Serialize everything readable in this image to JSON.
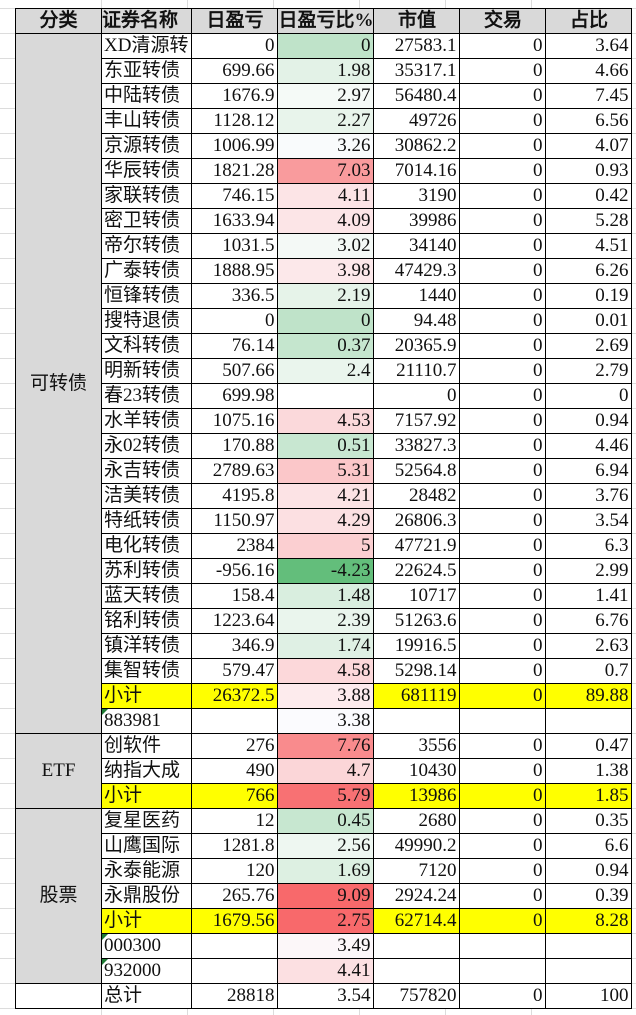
{
  "headers": [
    "分类",
    "证券名称",
    "日盈亏",
    "日盈亏比%",
    "市值",
    "交易",
    "占比"
  ],
  "colors": {
    "header_bg": "#d9d9d9",
    "category_bg": "#d9d9d9",
    "subtotal_bg": "#ffff00"
  },
  "groups": [
    {
      "category": "可转债",
      "rows": [
        {
          "name": "XD清源转",
          "pnl": "0",
          "pct": "0",
          "pct_bg": "#bfe3c9",
          "mv": "27583.1",
          "trade": "0",
          "share": "3.64"
        },
        {
          "name": "东亚转债",
          "pnl": "699.66",
          "pct": "1.98",
          "pct_bg": "#e3f2e7",
          "mv": "35317.1",
          "trade": "0",
          "share": "4.66"
        },
        {
          "name": "中陆转债",
          "pnl": "1676.9",
          "pct": "2.97",
          "pct_bg": "#f5faf7",
          "mv": "56480.4",
          "trade": "0",
          "share": "7.45"
        },
        {
          "name": "丰山转债",
          "pnl": "1128.12",
          "pct": "2.27",
          "pct_bg": "#e8f4eb",
          "mv": "49726",
          "trade": "0",
          "share": "6.56"
        },
        {
          "name": "京源转债",
          "pnl": "1006.99",
          "pct": "3.26",
          "pct_bg": "#f9fbfc",
          "mv": "30862.2",
          "trade": "0",
          "share": "4.07"
        },
        {
          "name": "华辰转债",
          "pnl": "1821.28",
          "pct": "7.03",
          "pct_bg": "#f99b9d",
          "mv": "7014.16",
          "trade": "0",
          "share": "0.93"
        },
        {
          "name": "家联转债",
          "pnl": "746.15",
          "pct": "4.11",
          "pct_bg": "#fce4e6",
          "mv": "3190",
          "trade": "0",
          "share": "0.42"
        },
        {
          "name": "密卫转债",
          "pnl": "1633.94",
          "pct": "4.09",
          "pct_bg": "#fce5e7",
          "mv": "39986",
          "trade": "0",
          "share": "5.28"
        },
        {
          "name": "帝尔转债",
          "pnl": "1031.5",
          "pct": "3.02",
          "pct_bg": "#f4f9f6",
          "mv": "34140",
          "trade": "0",
          "share": "4.51"
        },
        {
          "name": "广泰转债",
          "pnl": "1888.95",
          "pct": "3.98",
          "pct_bg": "#fce8ea",
          "mv": "47429.3",
          "trade": "0",
          "share": "6.26"
        },
        {
          "name": "恒锋转债",
          "pnl": "336.5",
          "pct": "2.19",
          "pct_bg": "#e6f3e9",
          "mv": "1440",
          "trade": "0",
          "share": "0.19"
        },
        {
          "name": "搜特退债",
          "pnl": "0",
          "pct": "0",
          "pct_bg": "#bfe3c9",
          "mv": "94.48",
          "trade": "0",
          "share": "0.01"
        },
        {
          "name": "文科转债",
          "pnl": "76.14",
          "pct": "0.37",
          "pct_bg": "#c5e6ce",
          "mv": "20365.9",
          "trade": "0",
          "share": "2.69"
        },
        {
          "name": "明新转债",
          "pnl": "507.66",
          "pct": "2.4",
          "pct_bg": "#eaf5ed",
          "mv": "21110.7",
          "trade": "0",
          "share": "2.79"
        },
        {
          "name": "春23转债",
          "pnl": "699.98",
          "pct": "",
          "pct_bg": "#ffffff",
          "mv": "0",
          "trade": "0",
          "share": "0"
        },
        {
          "name": "水羊转债",
          "pnl": "1075.16",
          "pct": "4.53",
          "pct_bg": "#fbd9db",
          "mv": "7157.92",
          "trade": "0",
          "share": "0.94"
        },
        {
          "name": "永02转债",
          "pnl": "170.88",
          "pct": "0.51",
          "pct_bg": "#c8e7d1",
          "mv": "33827.3",
          "trade": "0",
          "share": "4.46"
        },
        {
          "name": "永吉转债",
          "pnl": "2789.63",
          "pct": "5.31",
          "pct_bg": "#fbc7c9",
          "mv": "52564.8",
          "trade": "0",
          "share": "6.94"
        },
        {
          "name": "洁美转债",
          "pnl": "4195.8",
          "pct": "4.21",
          "pct_bg": "#fce3e5",
          "mv": "28482",
          "trade": "0",
          "share": "3.76"
        },
        {
          "name": "特纸转债",
          "pnl": "1150.97",
          "pct": "4.29",
          "pct_bg": "#fce0e2",
          "mv": "26806.3",
          "trade": "0",
          "share": "3.54"
        },
        {
          "name": "电化转债",
          "pnl": "2384",
          "pct": "5",
          "pct_bg": "#fbcfd1",
          "mv": "47721.9",
          "trade": "0",
          "share": "6.3"
        },
        {
          "name": "苏利转债",
          "pnl": "-956.16",
          "pct": "-4.23",
          "pct_bg": "#63be7b",
          "mv": "22624.5",
          "trade": "0",
          "share": "2.99"
        },
        {
          "name": "蓝天转债",
          "pnl": "158.4",
          "pct": "1.48",
          "pct_bg": "#d9eedf",
          "mv": "10717",
          "trade": "0",
          "share": "1.41"
        },
        {
          "name": "铭利转债",
          "pnl": "1223.64",
          "pct": "2.39",
          "pct_bg": "#eaf5ed",
          "mv": "51263.6",
          "trade": "0",
          "share": "6.76"
        },
        {
          "name": "镇洋转债",
          "pnl": "346.9",
          "pct": "1.74",
          "pct_bg": "#dff0e4",
          "mv": "19916.5",
          "trade": "0",
          "share": "2.63"
        },
        {
          "name": "集智转债",
          "pnl": "579.47",
          "pct": "4.58",
          "pct_bg": "#fcd8da",
          "mv": "5298.14",
          "trade": "0",
          "share": "0.7"
        }
      ],
      "subtotal": {
        "name": "小计",
        "pnl": "26372.5",
        "pct": "3.88",
        "pct_bg": "#fdebed",
        "mv": "681119",
        "trade": "0",
        "share": "89.88"
      },
      "indices": [
        {
          "code": "883981",
          "pct": "3.38",
          "pct_bg": "#fbfbfe"
        }
      ]
    },
    {
      "category": "ETF",
      "rows": [
        {
          "name": "创软件",
          "pnl": "276",
          "pct": "7.76",
          "pct_bg": "#f98b8d",
          "mv": "3556",
          "trade": "0",
          "share": "0.47"
        },
        {
          "name": "纳指大成",
          "pnl": "490",
          "pct": "4.7",
          "pct_bg": "#fbd6d8",
          "mv": "10430",
          "trade": "0",
          "share": "1.38"
        }
      ],
      "subtotal": {
        "name": "小计",
        "pnl": "766",
        "pct": "5.79",
        "pct_bg": "#f87173",
        "mv": "13986",
        "trade": "0",
        "share": "1.85"
      },
      "indices": []
    },
    {
      "category": "股票",
      "rows": [
        {
          "name": "复星医药",
          "pnl": "12",
          "pct": "0.45",
          "pct_bg": "#c7e7d0",
          "mv": "2680",
          "trade": "0",
          "share": "0.35"
        },
        {
          "name": "山鹰国际",
          "pnl": "1281.8",
          "pct": "2.56",
          "pct_bg": "#eef7f1",
          "mv": "49990.2",
          "trade": "0",
          "share": "6.6"
        },
        {
          "name": "永泰能源",
          "pnl": "120",
          "pct": "1.69",
          "pct_bg": "#ddf0e2",
          "mv": "7120",
          "trade": "0",
          "share": "0.94"
        },
        {
          "name": "永鼎股份",
          "pnl": "265.76",
          "pct": "9.09",
          "pct_bg": "#f8696b",
          "mv": "2924.24",
          "trade": "0",
          "share": "0.39"
        }
      ],
      "subtotal": {
        "name": "小计",
        "pnl": "1679.56",
        "pct": "2.75",
        "pct_bg": "#f8696b",
        "mv": "62714.4",
        "trade": "0",
        "share": "8.28"
      },
      "indices": [
        {
          "code": "000300",
          "pct": "3.49",
          "pct_bg": "#fcf7f9"
        },
        {
          "code": "932000",
          "pct": "4.41",
          "pct_bg": "#fce0e2"
        }
      ]
    }
  ],
  "total": {
    "name": "总计",
    "pnl": "28818",
    "pct": "3.54",
    "pct_bg": "#ffffff",
    "mv": "757820",
    "trade": "0",
    "share": "100"
  }
}
